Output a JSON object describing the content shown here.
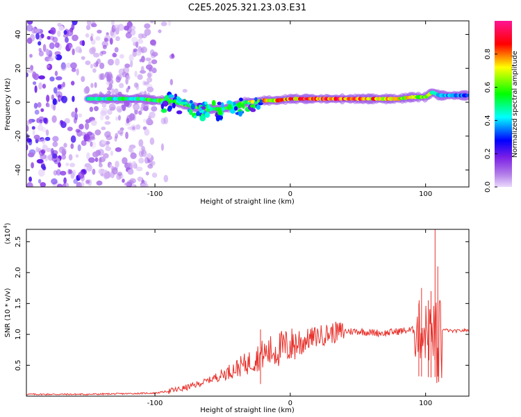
{
  "title": "C2E5.2025.321.23.03.E31",
  "chart_data": [
    {
      "type": "heatmap",
      "name": "spectrogram",
      "xlabel": "Height of straight line (km)",
      "ylabel": "Frequency (Hz)",
      "xlim": [
        -195,
        132
      ],
      "ylim": [
        -50,
        48
      ],
      "xticks": [
        -100,
        0,
        100
      ],
      "yticks": [
        -40,
        -20,
        0,
        20,
        40
      ],
      "colorbar": {
        "label": "Normalized spectral amplitude",
        "range": [
          0,
          1
        ],
        "ticks": [
          0.0,
          0.2,
          0.4,
          0.6,
          0.8
        ],
        "colors": [
          "#e6d6f7",
          "#8a2be2",
          "#0000ff",
          "#00ffff",
          "#00ff00",
          "#ffff00",
          "#ff0000",
          "#ff1493"
        ]
      },
      "trace": {
        "x": [
          -150,
          -130,
          -110,
          -100,
          -90,
          -80,
          -70,
          -60,
          -50,
          -40,
          -34,
          -30,
          -20,
          -10,
          0,
          20,
          40,
          60,
          80,
          90,
          100,
          105,
          110,
          120,
          132
        ],
        "y": [
          2,
          2,
          2,
          1,
          1,
          -1,
          -3,
          -4,
          -4,
          -2,
          0,
          0,
          1,
          1,
          2,
          2,
          2,
          2,
          2,
          3,
          3,
          6,
          4,
          4,
          4
        ],
        "amplitude": [
          0.5,
          0.5,
          0.55,
          0.6,
          0.6,
          0.65,
          0.6,
          0.6,
          0.55,
          0.6,
          0.6,
          0.7,
          0.75,
          0.8,
          0.85,
          0.9,
          0.9,
          0.85,
          0.75,
          0.7,
          0.7,
          0.6,
          0.45,
          0.4,
          0.35
        ]
      },
      "noise_region_x": [
        -195,
        -100
      ]
    },
    {
      "type": "line",
      "name": "snr",
      "xlabel": "Height of straight line (km)",
      "ylabel": "SNR (10 * v/v)",
      "scale_label": "(x10",
      "scale_exponent": "4",
      "xlim": [
        -195,
        132
      ],
      "ylim": [
        0,
        2.7
      ],
      "xticks": [
        -100,
        0,
        100
      ],
      "yticks": [
        0.5,
        1.0,
        1.5,
        2.0,
        2.5
      ],
      "ytick_labels": [
        "0.5",
        "1.0",
        "1.5",
        "2.0",
        "2.5"
      ],
      "series": [
        {
          "name": "SNR",
          "color": "#e8302a",
          "x": [
            -195,
            -150,
            -120,
            -100,
            -90,
            -80,
            -70,
            -60,
            -50,
            -40,
            -30,
            -25,
            -20,
            -10,
            0,
            10,
            20,
            30,
            40,
            50,
            60,
            70,
            80,
            90,
            95,
            100,
            105,
            108,
            110,
            115,
            120,
            132
          ],
          "y": [
            0.03,
            0.03,
            0.04,
            0.05,
            0.08,
            0.12,
            0.18,
            0.26,
            0.35,
            0.45,
            0.55,
            0.62,
            0.68,
            0.75,
            0.82,
            0.9,
            0.97,
            1.02,
            1.05,
            1.05,
            1.03,
            1.02,
            1.05,
            1.07,
            1.07,
            1.05,
            1.0,
            1.05,
            1.08,
            1.07,
            1.05,
            1.07
          ]
        }
      ],
      "spikes": [
        {
          "x": -22,
          "y": 1.08
        },
        {
          "x": 95,
          "y": 1.5
        },
        {
          "x": 97,
          "y": 1.75
        },
        {
          "x": 102,
          "y": 1.55
        },
        {
          "x": 104,
          "y": 1.7
        },
        {
          "x": 107,
          "y": 2.7
        },
        {
          "x": 109,
          "y": 2.1
        }
      ]
    }
  ]
}
